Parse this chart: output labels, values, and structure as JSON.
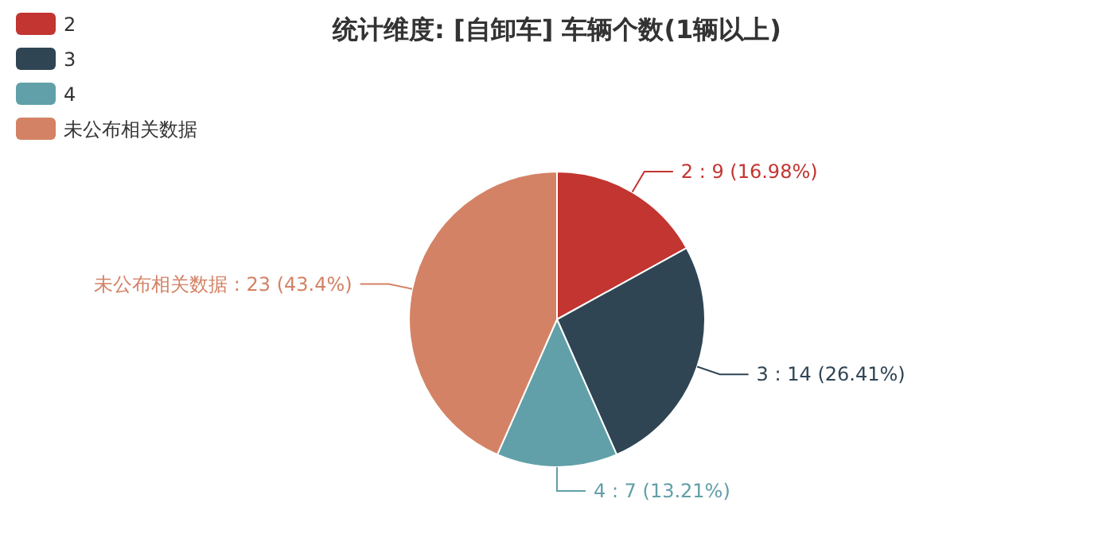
{
  "chart_data": {
    "type": "pie",
    "title": "统计维度: [自卸车] 车辆个数(1辆以上)",
    "categories": [
      "2",
      "3",
      "4",
      "未公布相关数据"
    ],
    "values": [
      9,
      14,
      7,
      23
    ],
    "colors": [
      "#c23531",
      "#2f4554",
      "#61a0a8",
      "#d48265"
    ],
    "value_labels": [
      "2 : 9 (16.98%)",
      "3 : 14 (26.41%)",
      "4 : 7 (13.21%)",
      "未公布相关数据 : 23 (43.4%)"
    ],
    "legend": "top left"
  }
}
